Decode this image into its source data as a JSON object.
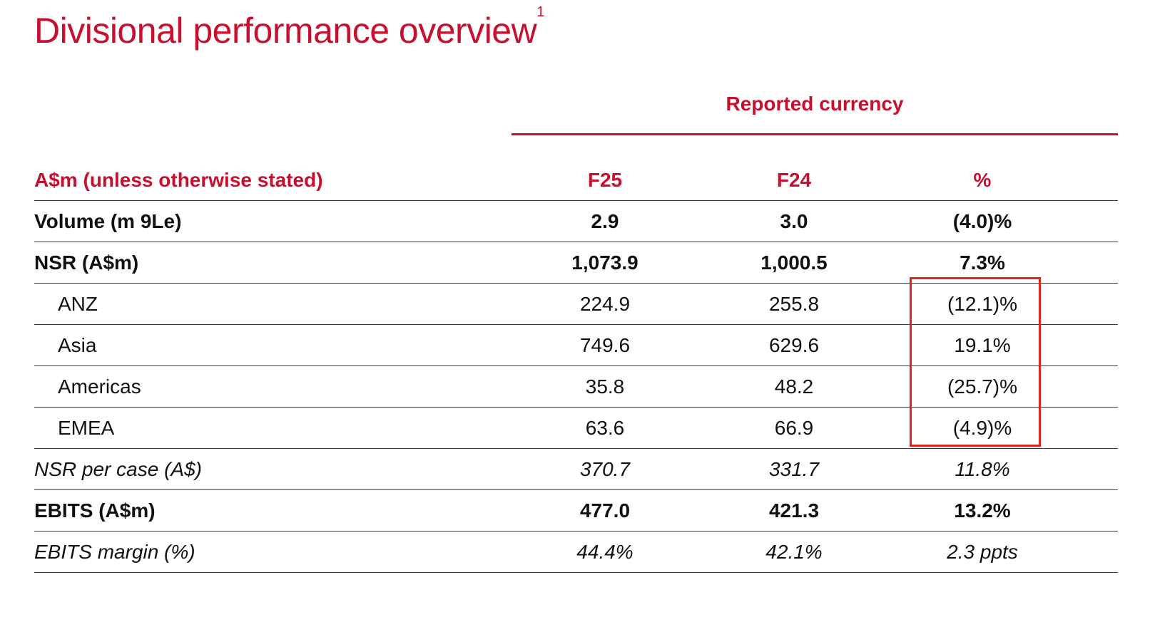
{
  "title": "Divisional performance overview",
  "title_footnote": "1",
  "group_header": "Reported currency",
  "table": {
    "header": {
      "label": "A$m (unless otherwise stated)",
      "f25": "F25",
      "f24": "F24",
      "pct": "%"
    },
    "rows": [
      {
        "label": "Volume (m 9Le)",
        "f25": "2.9",
        "f24": "3.0",
        "pct": "(4.0)%",
        "style": "bold"
      },
      {
        "label": "NSR (A$m)",
        "f25": "1,073.9",
        "f24": "1,000.5",
        "pct": "7.3%",
        "style": "bold"
      },
      {
        "label": "ANZ",
        "f25": "224.9",
        "f24": "255.8",
        "pct": "(12.1)%",
        "style": "indent"
      },
      {
        "label": "Asia",
        "f25": "749.6",
        "f24": "629.6",
        "pct": "19.1%",
        "style": "indent"
      },
      {
        "label": "Americas",
        "f25": "35.8",
        "f24": "48.2",
        "pct": "(25.7)%",
        "style": "indent"
      },
      {
        "label": "EMEA",
        "f25": "63.6",
        "f24": "66.9",
        "pct": "(4.9)%",
        "style": "indent"
      },
      {
        "label": "NSR per case (A$)",
        "f25": "370.7",
        "f24": "331.7",
        "pct": "11.8%",
        "style": "italic"
      },
      {
        "label": "EBITS (A$m)",
        "f25": "477.0",
        "f24": "421.3",
        "pct": "13.2%",
        "style": "bold"
      },
      {
        "label": "EBITS margin (%)",
        "f25": "44.4%",
        "f24": "42.1%",
        "pct": "2.3 ppts",
        "style": "italic"
      }
    ]
  },
  "colors": {
    "accent": "#c8102e",
    "highlight_box": "#e2231a"
  }
}
